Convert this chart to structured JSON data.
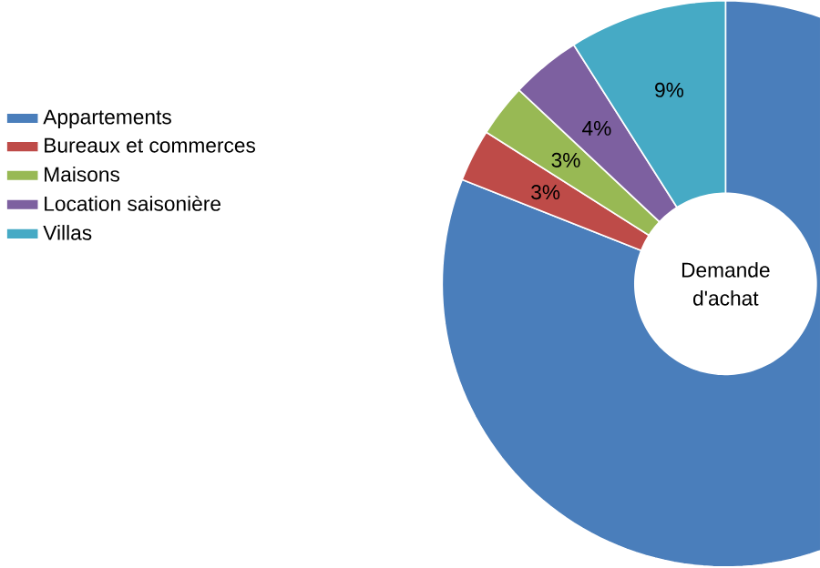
{
  "chart_data": {
    "type": "donut",
    "title": "Demande d'achat",
    "categories": [
      "Appartements",
      "Bureaux et commerces",
      "Maisons",
      "Location saisonière",
      "Villas"
    ],
    "values": [
      81,
      3,
      3,
      4,
      9
    ],
    "colors": [
      "#4a7ebb",
      "#be4b48",
      "#98b954",
      "#7d60a0",
      "#46aac5"
    ],
    "value_labels": [
      null,
      "3%",
      "3%",
      "4%",
      "9%"
    ],
    "legend": "left"
  }
}
